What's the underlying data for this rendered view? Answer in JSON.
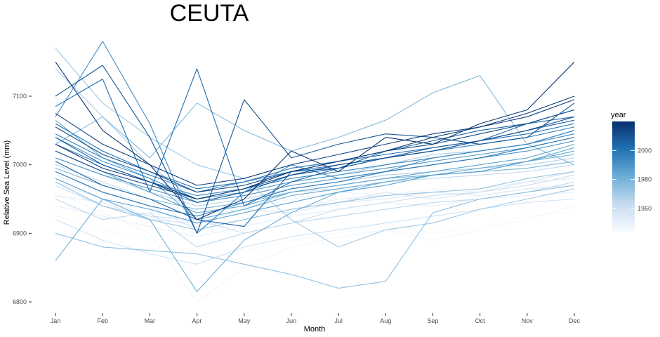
{
  "chart_data": {
    "type": "line",
    "title": "CEUTA",
    "xlabel": "Month",
    "ylabel": "Relative Sea Level (mm)",
    "categories": [
      "Jan",
      "Feb",
      "Mar",
      "Apr",
      "May",
      "Jun",
      "Jul",
      "Aug",
      "Sep",
      "Oct",
      "Nov",
      "Dec"
    ],
    "ylim": [
      6790,
      7130
    ],
    "yticks": [
      6800,
      6900,
      7000,
      7100
    ],
    "ytick_labels": [
      "6800",
      "6900",
      "7000",
      "7100"
    ],
    "grid": false,
    "legend": {
      "title": "year",
      "placement": "right",
      "type": "colorbar",
      "range": [
        1944,
        2020
      ],
      "ticks": [
        1960,
        1980,
        2000
      ],
      "tick_labels": [
        "1960",
        "1980",
        "2000"
      ],
      "color_low": "#f7fbff",
      "color_high": "#08306b"
    },
    "series": [
      {
        "year": 1945,
        "values": [
          6925,
          6905,
          6890,
          6860,
          6875,
          6890,
          6900,
          6915,
          6900,
          6910,
          6925,
          6930
        ]
      },
      {
        "year": 1947,
        "values": [
          6960,
          6930,
          6900,
          6800,
          6850,
          6880,
          6895,
          6905,
          6890,
          6905,
          6920,
          6940
        ]
      },
      {
        "year": 1949,
        "values": [
          6985,
          6960,
          6945,
          6930,
          6935,
          6950,
          6960,
          6955,
          6965,
          6960,
          6970,
          6985
        ]
      },
      {
        "year": 1951,
        "values": [
          6940,
          6925,
          6910,
          6895,
          6910,
          6925,
          6935,
          6945,
          6940,
          6950,
          6955,
          6960
        ]
      },
      {
        "year": 1953,
        "values": [
          6975,
          6950,
          6925,
          6910,
          6920,
          6935,
          6950,
          6955,
          6960,
          6965,
          6975,
          6980
        ]
      },
      {
        "year": 1955,
        "values": [
          6955,
          6945,
          6920,
          6915,
          6935,
          6930,
          6945,
          6950,
          6960,
          6955,
          6965,
          6970
        ]
      },
      {
        "year": 1957,
        "values": [
          6990,
          6960,
          6940,
          6905,
          6920,
          6935,
          6945,
          6960,
          6950,
          6960,
          6975,
          6990
        ]
      },
      {
        "year": 1959,
        "values": [
          6920,
          6890,
          6870,
          6855,
          6880,
          6895,
          6905,
          6915,
          6925,
          6935,
          6945,
          6950
        ]
      },
      {
        "year": 1961,
        "values": [
          6970,
          6940,
          6925,
          6920,
          6900,
          6915,
          6935,
          6945,
          6955,
          6960,
          6970,
          6985
        ]
      },
      {
        "year": 1963,
        "values": [
          7000,
          6975,
          6950,
          6920,
          6935,
          6960,
          6965,
          6975,
          6980,
          6985,
          6990,
          7000
        ]
      },
      {
        "year": 1965,
        "values": [
          6950,
          6920,
          6930,
          6880,
          6900,
          6915,
          6925,
          6935,
          6945,
          6950,
          6960,
          6975
        ]
      },
      {
        "year": 1967,
        "values": [
          7010,
          6985,
          6960,
          6940,
          6950,
          6965,
          6975,
          6985,
          6990,
          6995,
          7000,
          7010
        ]
      },
      {
        "year": 1969,
        "values": [
          7140,
          7070,
          7000,
          6945,
          6960,
          6975,
          6985,
          7000,
          7015,
          7020,
          7030,
          7050
        ]
      },
      {
        "year": 1971,
        "values": [
          7170,
          7090,
          7040,
          7000,
          6980,
          6920,
          6880,
          6905,
          6915,
          6935,
          6950,
          6965
        ]
      },
      {
        "year": 1973,
        "values": [
          6975,
          6940,
          6920,
          6905,
          6920,
          6935,
          6945,
          6955,
          6960,
          6965,
          6980,
          6990
        ]
      },
      {
        "year": 1975,
        "values": [
          6900,
          6880,
          6875,
          6870,
          6855,
          6840,
          6820,
          6830,
          6930,
          6950,
          6960,
          6970
        ]
      },
      {
        "year": 1977,
        "values": [
          7030,
          7070,
          7010,
          7090,
          7050,
          7020,
          7040,
          7065,
          7105,
          7130,
          7030,
          7000
        ]
      },
      {
        "year": 1979,
        "values": [
          6995,
          6970,
          6950,
          6935,
          6945,
          6960,
          6970,
          6980,
          6985,
          6990,
          6995,
          7005
        ]
      },
      {
        "year": 1981,
        "values": [
          6860,
          6950,
          6920,
          6815,
          6890,
          6930,
          6960,
          6975,
          6985,
          6990,
          7005,
          7015
        ]
      },
      {
        "year": 1983,
        "values": [
          7065,
          7010,
          6980,
          6920,
          6935,
          6955,
          6965,
          6975,
          6985,
          6995,
          7005,
          7025
        ]
      },
      {
        "year": 1985,
        "values": [
          7020,
          6990,
          6960,
          6930,
          6940,
          6960,
          6970,
          6980,
          6990,
          7000,
          7010,
          7030
        ]
      },
      {
        "year": 1987,
        "values": [
          6980,
          6950,
          6935,
          6915,
          6930,
          6945,
          6960,
          6970,
          6985,
          6990,
          7005,
          7020
        ]
      },
      {
        "year": 1989,
        "values": [
          7040,
          7005,
          6980,
          6950,
          6960,
          6975,
          6985,
          6995,
          7005,
          7015,
          7025,
          7040
        ]
      },
      {
        "year": 1991,
        "values": [
          7010,
          6985,
          6965,
          6945,
          6955,
          6970,
          6980,
          6990,
          7000,
          7010,
          7020,
          7035
        ]
      },
      {
        "year": 1993,
        "values": [
          7070,
          7180,
          7060,
          6900,
          6960,
          7000,
          6980,
          6990,
          7010,
          7020,
          7030,
          7045
        ]
      },
      {
        "year": 1995,
        "values": [
          7030,
          7000,
          6975,
          6955,
          6965,
          6980,
          6990,
          7000,
          7010,
          7020,
          7030,
          7050
        ]
      },
      {
        "year": 1997,
        "values": [
          7045,
          7010,
          6985,
          6960,
          6975,
          6990,
          7000,
          7010,
          7020,
          7030,
          7040,
          7055
        ]
      },
      {
        "year": 1999,
        "values": [
          6990,
          6960,
          6940,
          6925,
          6945,
          6965,
          6975,
          6990,
          7000,
          7010,
          7025,
          7040
        ]
      },
      {
        "year": 2001,
        "values": [
          7060,
          7020,
          6990,
          6965,
          6975,
          6995,
          7005,
          7015,
          7025,
          7035,
          7045,
          7060
        ]
      },
      {
        "year": 2003,
        "values": [
          7085,
          7125,
          6960,
          7140,
          6940,
          6975,
          6995,
          7010,
          7020,
          7035,
          7060,
          7070
        ]
      },
      {
        "year": 2005,
        "values": [
          7005,
          6970,
          6950,
          6920,
          6910,
          6990,
          6995,
          7020,
          7035,
          7050,
          7060,
          7080
        ]
      },
      {
        "year": 2007,
        "values": [
          7040,
          7000,
          6975,
          6945,
          6960,
          6985,
          6995,
          7010,
          7025,
          7035,
          7050,
          7065
        ]
      },
      {
        "year": 2009,
        "values": [
          7100,
          7145,
          7040,
          6900,
          7095,
          7010,
          7030,
          7045,
          7040,
          7030,
          7040,
          7090
        ]
      },
      {
        "year": 2011,
        "values": [
          7020,
          6990,
          6970,
          6950,
          6965,
          6985,
          7000,
          7010,
          7020,
          7035,
          7050,
          7070
        ]
      },
      {
        "year": 2013,
        "values": [
          7055,
          7015,
          6990,
          6960,
          6970,
          6990,
          7005,
          7020,
          7030,
          7045,
          7060,
          7080
        ]
      },
      {
        "year": 2015,
        "values": [
          7075,
          7030,
          7000,
          6970,
          6980,
          7000,
          7015,
          7030,
          7045,
          7055,
          7070,
          7095
        ]
      },
      {
        "year": 2017,
        "values": [
          7030,
          6995,
          6975,
          6950,
          6965,
          6990,
          7005,
          7020,
          7040,
          7055,
          7075,
          7100
        ]
      },
      {
        "year": 2019,
        "values": [
          7150,
          7050,
          7000,
          6920,
          6950,
          7020,
          6990,
          7040,
          7030,
          7060,
          7080,
          7150
        ]
      }
    ]
  }
}
